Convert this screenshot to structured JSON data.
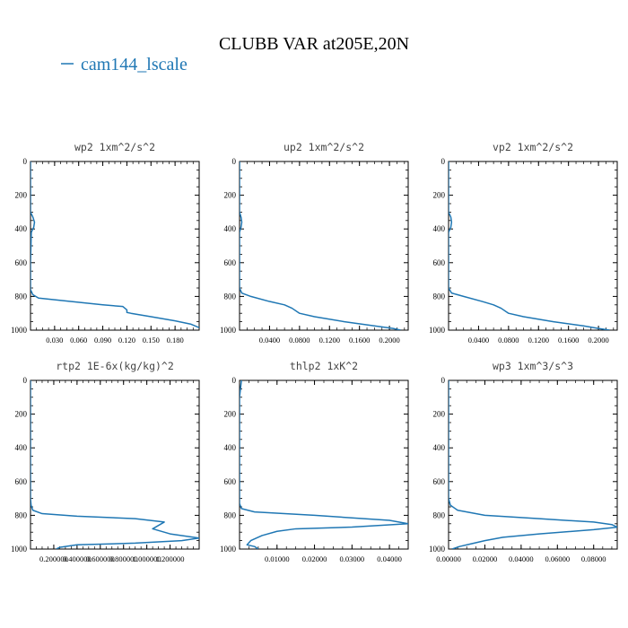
{
  "figure": {
    "title": "CLUBB VAR at205E,20N",
    "legend": {
      "label": "cam144_lscale",
      "color": "#1f77b4"
    }
  },
  "chart_data": [
    {
      "type": "line",
      "title": "wp2  1xm^2/s^2",
      "ylim": [
        1000,
        0
      ],
      "yticks": [
        0,
        200,
        400,
        600,
        800,
        1000
      ],
      "ytick_labels": [
        "0",
        "200",
        "400",
        "600",
        "800",
        "1000"
      ],
      "xlim": [
        0.0,
        0.21
      ],
      "xticks": [
        0.03,
        0.06,
        0.09,
        0.12,
        0.15,
        0.18
      ],
      "xtick_labels": [
        "0.030",
        "0.060",
        "0.090",
        "0.120",
        "0.150",
        "0.180"
      ],
      "series": [
        {
          "name": "cam144_lscale",
          "x": [
            0.0,
            0.0,
            0.003,
            0.005,
            0.004,
            0.002,
            0.001,
            0.0,
            0.0,
            0.0,
            0.003,
            0.01,
            0.05,
            0.09,
            0.115,
            0.12,
            0.12,
            0.125,
            0.15,
            0.18,
            0.2,
            0.21
          ],
          "y": [
            0,
            300,
            330,
            360,
            390,
            410,
            420,
            600,
            700,
            760,
            790,
            810,
            830,
            850,
            860,
            880,
            895,
            900,
            920,
            945,
            965,
            985
          ]
        }
      ]
    },
    {
      "type": "line",
      "title": "up2  1xm^2/s^2",
      "ylim": [
        1000,
        0
      ],
      "yticks": [
        0,
        200,
        400,
        600,
        800,
        1000
      ],
      "ytick_labels": [
        "0",
        "200",
        "400",
        "600",
        "800",
        "1000"
      ],
      "xlim": [
        0.0,
        0.225
      ],
      "xticks": [
        0.04,
        0.08,
        0.12,
        0.16,
        0.2
      ],
      "xtick_labels": [
        "0.0400",
        "0.0800",
        "0.1200",
        "0.1600",
        "0.2000"
      ],
      "series": [
        {
          "name": "cam144_lscale",
          "x": [
            0.0,
            0.0,
            0.002,
            0.003,
            0.002,
            0.0,
            0.0,
            0.0,
            0.003,
            0.015,
            0.04,
            0.06,
            0.07,
            0.08,
            0.1,
            0.14,
            0.18,
            0.205,
            0.215
          ],
          "y": [
            0,
            300,
            330,
            360,
            390,
            420,
            600,
            750,
            780,
            800,
            830,
            850,
            870,
            900,
            920,
            950,
            975,
            990,
            1000
          ]
        }
      ]
    },
    {
      "type": "line",
      "title": "vp2  1xm^2/s^2",
      "ylim": [
        1000,
        0
      ],
      "yticks": [
        0,
        200,
        400,
        600,
        800,
        1000
      ],
      "ytick_labels": [
        "0",
        "200",
        "400",
        "600",
        "800",
        "1000"
      ],
      "xlim": [
        0.0,
        0.225
      ],
      "xticks": [
        0.04,
        0.08,
        0.12,
        0.16,
        0.2
      ],
      "xtick_labels": [
        "0.0400",
        "0.0800",
        "0.1200",
        "0.1600",
        "0.2000"
      ],
      "series": [
        {
          "name": "cam144_lscale",
          "x": [
            0.0,
            0.0,
            0.003,
            0.004,
            0.003,
            0.0,
            0.0,
            0.0,
            0.004,
            0.02,
            0.045,
            0.06,
            0.07,
            0.08,
            0.1,
            0.14,
            0.18,
            0.2,
            0.215
          ],
          "y": [
            0,
            300,
            330,
            360,
            390,
            420,
            600,
            750,
            780,
            800,
            830,
            850,
            870,
            900,
            920,
            950,
            975,
            990,
            1000
          ]
        }
      ]
    },
    {
      "type": "line",
      "title": "rtp2  1E-6x(kg/kg)^2",
      "ylim": [
        1000,
        0
      ],
      "yticks": [
        0,
        200,
        400,
        600,
        800,
        1000
      ],
      "ytick_labels": [
        "0",
        "200",
        "400",
        "600",
        "800",
        "1000"
      ],
      "xlim": [
        0.0,
        1.45
      ],
      "xticks": [
        0.2,
        0.4,
        0.6,
        0.8,
        1.0,
        1.2
      ],
      "xtick_labels": [
        "0.200000",
        "0.400000",
        "0.600000",
        "0.800000",
        "1.000000",
        "1.200000"
      ],
      "series": [
        {
          "name": "cam144_lscale",
          "x": [
            0.0,
            0.0,
            0.005,
            0.02,
            0.1,
            0.4,
            0.9,
            1.15,
            1.05,
            1.2,
            1.45,
            1.3,
            0.9,
            0.4,
            0.25,
            0.22
          ],
          "y": [
            0,
            700,
            740,
            770,
            790,
            805,
            820,
            840,
            880,
            910,
            935,
            950,
            965,
            975,
            990,
            1000
          ]
        }
      ]
    },
    {
      "type": "line",
      "title": "thlp2  1xK^2",
      "ylim": [
        1000,
        0
      ],
      "yticks": [
        0,
        200,
        400,
        600,
        800,
        1000
      ],
      "ytick_labels": [
        "0",
        "200",
        "400",
        "600",
        "800",
        "1000"
      ],
      "xlim": [
        0.0,
        0.045
      ],
      "xticks": [
        0.01,
        0.02,
        0.03,
        0.04
      ],
      "xtick_labels": [
        "0.01000",
        "0.02000",
        "0.03000",
        "0.04000"
      ],
      "series": [
        {
          "name": "cam144_lscale",
          "x": [
            0.0005,
            0.0,
            0.0,
            0.0,
            0.0005,
            0.004,
            0.02,
            0.04,
            0.045,
            0.03,
            0.015,
            0.01,
            0.006,
            0.003,
            0.002,
            0.004,
            0.005
          ],
          "y": [
            0,
            100,
            600,
            730,
            760,
            780,
            800,
            830,
            850,
            870,
            880,
            895,
            920,
            950,
            975,
            985,
            1000
          ]
        }
      ]
    },
    {
      "type": "line",
      "title": "wp3  1xm^3/s^3",
      "ylim": [
        1000,
        0
      ],
      "yticks": [
        0,
        200,
        400,
        600,
        800,
        1000
      ],
      "ytick_labels": [
        "0",
        "200",
        "400",
        "600",
        "800",
        "1000"
      ],
      "xlim": [
        0.0,
        0.093
      ],
      "xticks": [
        0.0,
        0.02,
        0.04,
        0.06,
        0.08
      ],
      "xtick_labels": [
        "0.00000",
        "0.02000",
        "0.04000",
        "0.06000",
        "0.08000"
      ],
      "series": [
        {
          "name": "cam144_lscale",
          "x": [
            0.0,
            0.0,
            0.0,
            0.001,
            0.005,
            0.02,
            0.05,
            0.08,
            0.09,
            0.093,
            0.08,
            0.05,
            0.03,
            0.02,
            0.012,
            0.006,
            0.002
          ],
          "y": [
            0,
            300,
            700,
            740,
            770,
            800,
            820,
            840,
            855,
            870,
            885,
            910,
            930,
            950,
            970,
            985,
            1000
          ]
        }
      ]
    }
  ]
}
